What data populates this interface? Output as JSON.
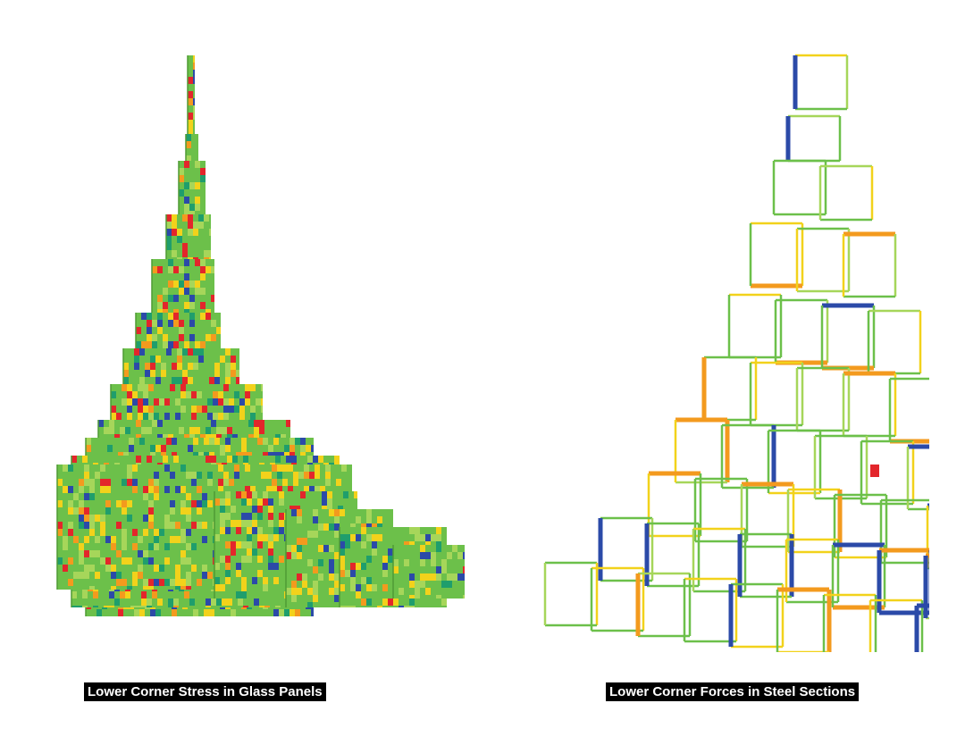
{
  "captions": {
    "left": "Lower Corner Stress in Glass Panels",
    "right": "Lower Corner Forces in Steel Sections"
  },
  "palette": {
    "green": "#6cc04a",
    "light_green": "#a6d65a",
    "yellow": "#f2d21b",
    "orange": "#f39a1e",
    "red": "#e3262b",
    "blue": "#2b4aa8",
    "teal": "#1f9e6c"
  }
}
